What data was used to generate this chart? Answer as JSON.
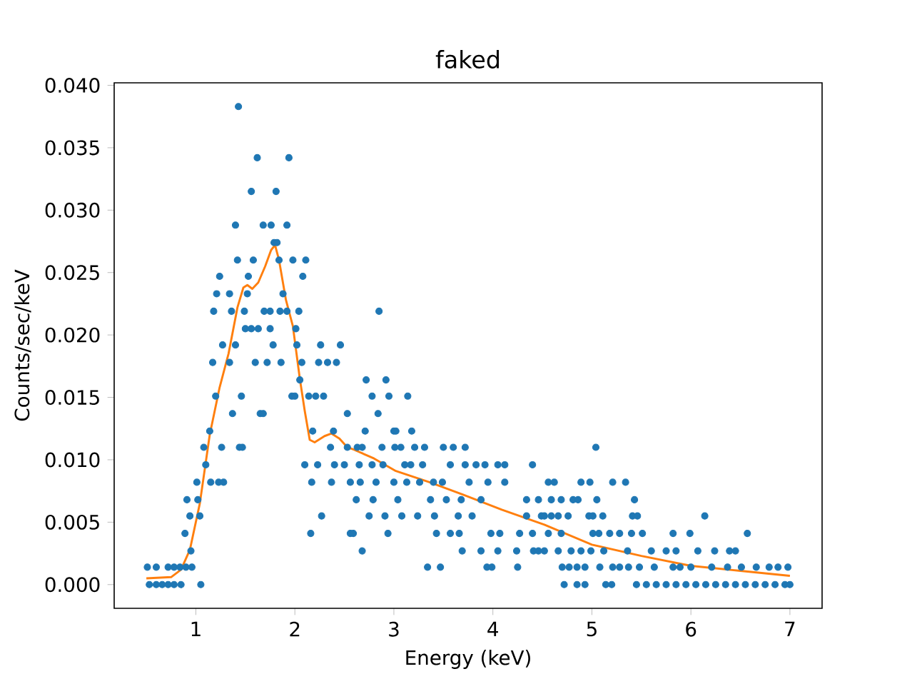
{
  "chart_data": {
    "type": "scatter",
    "title": "faked",
    "xlabel": "Energy (keV)",
    "ylabel": "Counts/sec/keV",
    "xlim": [
      0.175,
      7.325
    ],
    "ylim": [
      -0.0019,
      0.0402
    ],
    "xticks": [
      1,
      2,
      3,
      4,
      5,
      6,
      7
    ],
    "yticks": [
      {
        "value": 0,
        "label": "0.000"
      },
      {
        "value": 0.005,
        "label": "0.005"
      },
      {
        "value": 0.01,
        "label": "0.010"
      },
      {
        "value": 0.015,
        "label": "0.015"
      },
      {
        "value": 0.02,
        "label": "0.020"
      },
      {
        "value": 0.025,
        "label": "0.025"
      },
      {
        "value": 0.03,
        "label": "0.030"
      },
      {
        "value": 0.035,
        "label": "0.035"
      },
      {
        "value": 0.04,
        "label": "0.040"
      }
    ],
    "marker": "circle",
    "grid": false,
    "series": [
      {
        "color": "#1f77b4",
        "x": [
          0.53,
          0.6,
          0.66,
          0.72,
          0.78,
          0.85,
          1.05,
          0.51,
          0.6,
          0.72,
          0.78,
          0.84,
          0.9,
          0.96,
          0.95,
          0.89,
          0.94,
          1.04,
          0.91,
          1.02,
          1.01,
          1.15,
          1.23,
          1.28,
          1.1,
          1.08,
          1.26,
          1.44,
          1.47,
          1.14,
          1.37,
          1.65,
          1.68,
          1.2,
          1.46,
          1.97,
          2.0,
          2.14,
          2.21,
          2.29,
          2.05,
          1.17,
          1.34,
          1.6,
          1.72,
          1.86,
          2.07,
          2.24,
          2.33,
          2.42,
          1.27,
          1.4,
          1.78,
          2.02,
          2.26,
          2.46,
          1.5,
          1.56,
          1.63,
          1.75,
          2.01,
          1.18,
          1.36,
          1.49,
          1.69,
          1.75,
          1.85,
          1.92,
          2.04,
          1.21,
          1.34,
          1.52,
          1.88,
          1.24,
          1.53,
          2.08,
          1.42,
          1.58,
          1.84,
          1.98,
          2.11,
          1.79,
          1.82,
          1.4,
          1.68,
          1.76,
          1.92,
          1.56,
          1.81,
          1.62,
          1.94,
          1.43,
          2.18,
          2.39,
          2.53,
          2.36,
          2.53,
          2.1,
          2.23,
          2.4,
          2.5,
          2.17,
          2.37,
          2.56,
          2.27,
          2.16,
          2.56,
          2.85,
          2.72,
          2.92,
          2.78,
          2.95,
          3.14,
          2.84,
          2.71,
          3.0,
          3.02,
          3.18,
          2.63,
          2.68,
          2.88,
          3.01,
          3.07,
          3.21,
          3.31,
          3.5,
          3.6,
          3.72,
          2.65,
          2.78,
          2.89,
          3.11,
          3.17,
          3.29,
          3.57,
          3.72,
          3.83,
          3.92,
          4.05,
          4.12,
          4.4,
          2.66,
          2.82,
          3.0,
          3.13,
          3.26,
          3.4,
          3.49,
          3.76,
          3.95,
          4.12,
          2.62,
          2.79,
          3.04,
          3.37,
          3.53,
          3.68,
          3.88,
          4.34,
          2.75,
          2.91,
          3.08,
          3.24,
          3.41,
          3.65,
          3.79,
          4.34,
          4.49,
          2.59,
          2.94,
          3.43,
          3.57,
          3.66,
          3.98,
          4.07,
          4.27,
          4.4,
          2.68,
          3.69,
          3.88,
          4.05,
          4.24,
          4.41,
          3.34,
          3.47,
          3.94,
          3.99,
          5.04,
          4.56,
          4.62,
          4.89,
          4.98,
          5.21,
          5.34,
          4.46,
          4.59,
          4.69,
          4.81,
          4.86,
          5.05,
          5.43,
          4.52,
          4.59,
          4.66,
          4.76,
          4.97,
          5.01,
          5.11,
          5.41,
          5.46,
          6.14,
          4.56,
          4.69,
          5.01,
          5.07,
          5.18,
          5.28,
          5.4,
          5.51,
          5.82,
          5.99,
          6.57,
          4.46,
          4.52,
          4.66,
          4.79,
          4.89,
          4.99,
          5.12,
          5.36,
          5.6,
          5.75,
          5.85,
          6.07,
          6.24,
          6.39,
          6.45,
          4.25,
          4.7,
          4.77,
          4.85,
          4.93,
          5.08,
          5.21,
          5.28,
          5.37,
          5.48,
          5.63,
          5.82,
          5.89,
          6.0,
          6.21,
          6.37,
          6.51,
          6.66,
          6.79,
          6.88,
          6.98,
          4.72,
          4.85,
          4.93,
          5.14,
          5.2,
          5.45,
          5.55,
          5.65,
          5.75,
          5.85,
          5.95,
          6.05,
          6.15,
          6.25,
          6.35,
          6.45,
          6.55,
          6.65,
          6.75,
          6.85,
          6.95,
          7.0
        ],
        "values": [
          0,
          0,
          0,
          0,
          0,
          0,
          0,
          0.0014,
          0.0014,
          0.0014,
          0.0014,
          0.0014,
          0.0014,
          0.0014,
          0.0027,
          0.0041,
          0.0055,
          0.0055,
          0.0068,
          0.0068,
          0.0082,
          0.0082,
          0.0082,
          0.0082,
          0.0096,
          0.011,
          0.011,
          0.011,
          0.011,
          0.0123,
          0.0137,
          0.0137,
          0.0137,
          0.0151,
          0.0151,
          0.0151,
          0.0151,
          0.0151,
          0.0151,
          0.0151,
          0.0164,
          0.0178,
          0.0178,
          0.0178,
          0.0178,
          0.0178,
          0.0178,
          0.0178,
          0.0178,
          0.0178,
          0.0192,
          0.0192,
          0.0192,
          0.0192,
          0.0192,
          0.0192,
          0.0205,
          0.0205,
          0.0205,
          0.0205,
          0.0205,
          0.0219,
          0.0219,
          0.0219,
          0.0219,
          0.0219,
          0.0219,
          0.0219,
          0.0219,
          0.0233,
          0.0233,
          0.0233,
          0.0233,
          0.0247,
          0.0247,
          0.0247,
          0.026,
          0.026,
          0.026,
          0.026,
          0.026,
          0.0274,
          0.0274,
          0.0288,
          0.0288,
          0.0288,
          0.0288,
          0.0315,
          0.0315,
          0.0342,
          0.0342,
          0.0383,
          0.0123,
          0.0123,
          0.0137,
          0.011,
          0.011,
          0.0096,
          0.0096,
          0.0096,
          0.0096,
          0.0082,
          0.0082,
          0.0082,
          0.0055,
          0.0041,
          0.0041,
          0.0219,
          0.0164,
          0.0164,
          0.0151,
          0.0151,
          0.0151,
          0.0137,
          0.0123,
          0.0123,
          0.0123,
          0.0123,
          0.011,
          0.011,
          0.011,
          0.011,
          0.011,
          0.011,
          0.011,
          0.011,
          0.011,
          0.011,
          0.0096,
          0.0096,
          0.0096,
          0.0096,
          0.0096,
          0.0096,
          0.0096,
          0.0096,
          0.0096,
          0.0096,
          0.0096,
          0.0096,
          0.0096,
          0.0082,
          0.0082,
          0.0082,
          0.0082,
          0.0082,
          0.0082,
          0.0082,
          0.0082,
          0.0082,
          0.0082,
          0.0068,
          0.0068,
          0.0068,
          0.0068,
          0.0068,
          0.0068,
          0.0068,
          0.0068,
          0.0055,
          0.0055,
          0.0055,
          0.0055,
          0.0055,
          0.0055,
          0.0055,
          0.0055,
          0.0055,
          0.0041,
          0.0041,
          0.0041,
          0.0041,
          0.0041,
          0.0041,
          0.0041,
          0.0041,
          0.0041,
          0.0027,
          0.0027,
          0.0027,
          0.0027,
          0.0027,
          0.0027,
          0.0014,
          0.0014,
          0.0014,
          0.0014,
          0.011,
          0.0082,
          0.0082,
          0.0082,
          0.0082,
          0.0082,
          0.0082,
          0.0068,
          0.0068,
          0.0068,
          0.0068,
          0.0068,
          0.0068,
          0.0068,
          0.0055,
          0.0055,
          0.0055,
          0.0055,
          0.0055,
          0.0055,
          0.0055,
          0.0055,
          0.0055,
          0.0055,
          0.0041,
          0.0041,
          0.0041,
          0.0041,
          0.0041,
          0.0041,
          0.0041,
          0.0041,
          0.0041,
          0.0041,
          0.0041,
          0.0027,
          0.0027,
          0.0027,
          0.0027,
          0.0027,
          0.0027,
          0.0027,
          0.0027,
          0.0027,
          0.0027,
          0.0027,
          0.0027,
          0.0027,
          0.0027,
          0.0027,
          0.0014,
          0.0014,
          0.0014,
          0.0014,
          0.0014,
          0.0014,
          0.0014,
          0.0014,
          0.0014,
          0.0014,
          0.0014,
          0.0014,
          0.0014,
          0.0014,
          0.0014,
          0.0014,
          0.0014,
          0.0014,
          0.0014,
          0.0014,
          0.0014,
          0,
          0,
          0,
          0,
          0,
          0,
          0,
          0,
          0,
          0,
          0,
          0,
          0,
          0,
          0,
          0,
          0,
          0,
          0,
          0,
          0,
          0
        ]
      },
      {
        "type": "line",
        "color": "#ff7f0e",
        "marker": "none",
        "line_style": "solid",
        "x": [
          0.5,
          0.75,
          0.85,
          0.94,
          1.04,
          1.14,
          1.24,
          1.33,
          1.42,
          1.48,
          1.52,
          1.57,
          1.63,
          1.7,
          1.76,
          1.8,
          1.84,
          1.91,
          1.98,
          2.05,
          2.1,
          2.15,
          2.2,
          2.3,
          2.37,
          2.45,
          2.53,
          2.6,
          2.8,
          3.02,
          3.36,
          3.7,
          4.09,
          4.52,
          5.0,
          5.5,
          6.0,
          6.5,
          7.0
        ],
        "values": [
          0.0005,
          0.0006,
          0.0012,
          0.0028,
          0.0065,
          0.012,
          0.0158,
          0.0185,
          0.0222,
          0.0238,
          0.024,
          0.0237,
          0.0242,
          0.0255,
          0.0268,
          0.0272,
          0.026,
          0.0228,
          0.0207,
          0.0165,
          0.0139,
          0.0116,
          0.0114,
          0.0119,
          0.0121,
          0.0117,
          0.011,
          0.0108,
          0.0101,
          0.0091,
          0.0082,
          0.0072,
          0.006,
          0.0048,
          0.0032,
          0.0023,
          0.0015,
          0.0011,
          0.0007
        ]
      }
    ]
  }
}
